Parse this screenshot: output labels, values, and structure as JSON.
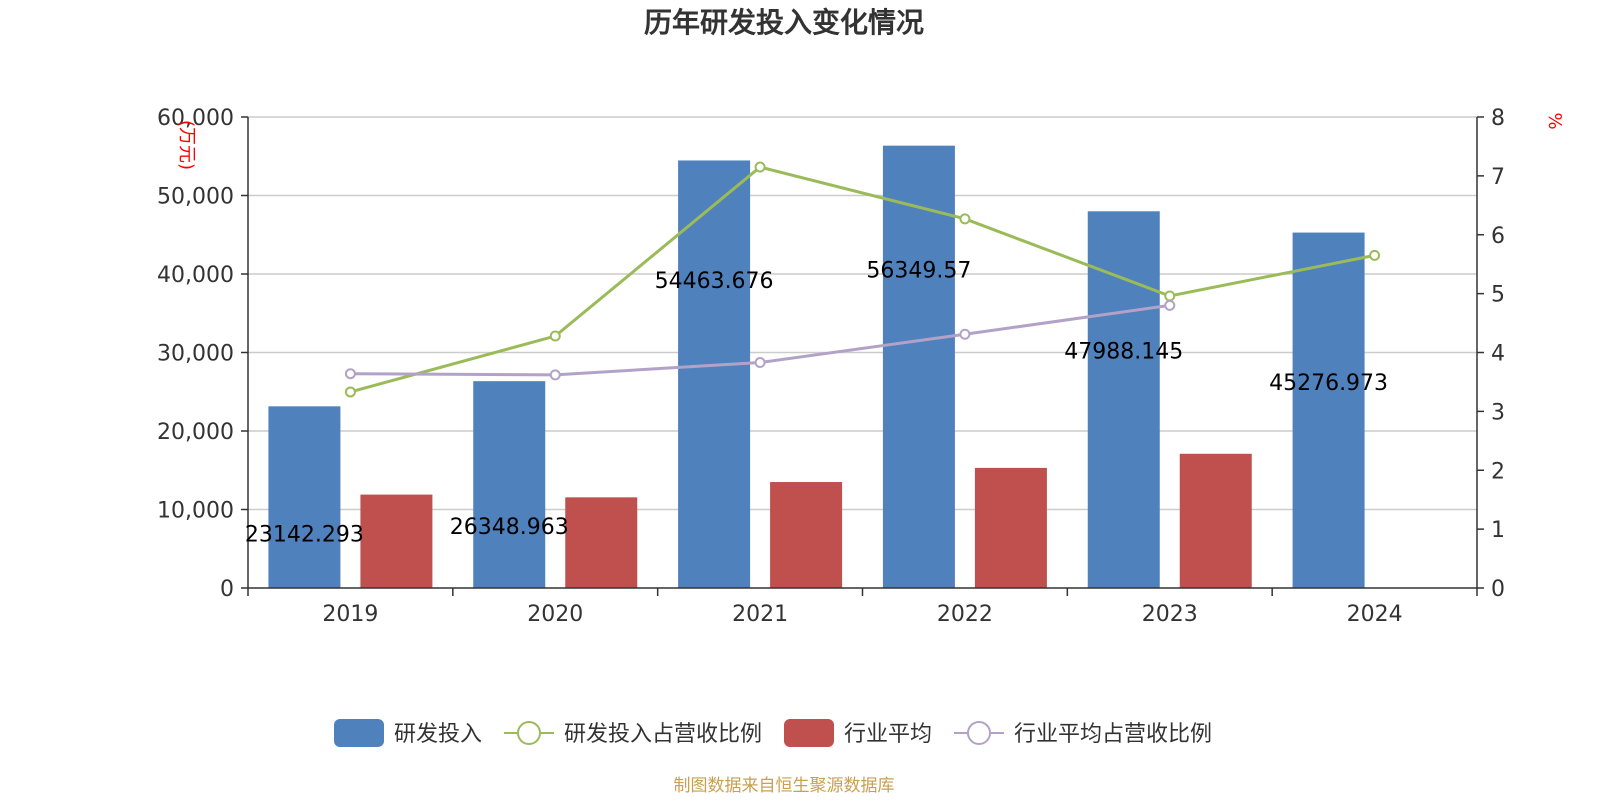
{
  "chart_data": {
    "type": "bar",
    "title": "历年研发投入变化情况",
    "categories": [
      "2019",
      "2020",
      "2021",
      "2022",
      "2023",
      "2024"
    ],
    "left_axis": {
      "unit": "(万元)",
      "ylim": [
        0,
        60000
      ],
      "ticks": [
        "0",
        "10,000",
        "20,000",
        "30,000",
        "40,000",
        "50,000",
        "60,000"
      ]
    },
    "right_axis": {
      "unit": "%",
      "ylim": [
        0,
        8
      ],
      "ticks": [
        "0",
        "1",
        "2",
        "3",
        "4",
        "5",
        "6",
        "7",
        "8"
      ]
    },
    "series": [
      {
        "name": "研发投入",
        "type": "bar",
        "axis": "left",
        "color": "#4f81bd",
        "values": [
          23142.293,
          26348.963,
          54463.676,
          56349.57,
          47988.145,
          45276.973
        ],
        "labels": [
          "23142.293",
          "26348.963",
          "54463.676",
          "56349.57",
          "47988.145",
          "45276.973"
        ]
      },
      {
        "name": "研发投入占营收比例",
        "type": "line",
        "axis": "right",
        "color": "#9bbb59",
        "values": [
          3.33,
          4.28,
          7.15,
          6.27,
          4.96,
          5.65
        ]
      },
      {
        "name": "行业平均",
        "type": "bar",
        "axis": "left",
        "color": "#c0504d",
        "values": [
          11900,
          11550,
          13500,
          15300,
          17100,
          null
        ]
      },
      {
        "name": "行业平均占营收比例",
        "type": "line",
        "axis": "right",
        "color": "#b3a2c7",
        "values": [
          3.64,
          3.62,
          3.83,
          4.31,
          4.8,
          null
        ]
      }
    ],
    "grid": true,
    "legend": "bottom"
  },
  "footer": {
    "source": "制图数据来自恒生聚源数据库"
  },
  "colors": {
    "unit_text": "#ff0000",
    "source_text": "#c8a050",
    "axis": "#333333",
    "grid": "#cccccc"
  }
}
